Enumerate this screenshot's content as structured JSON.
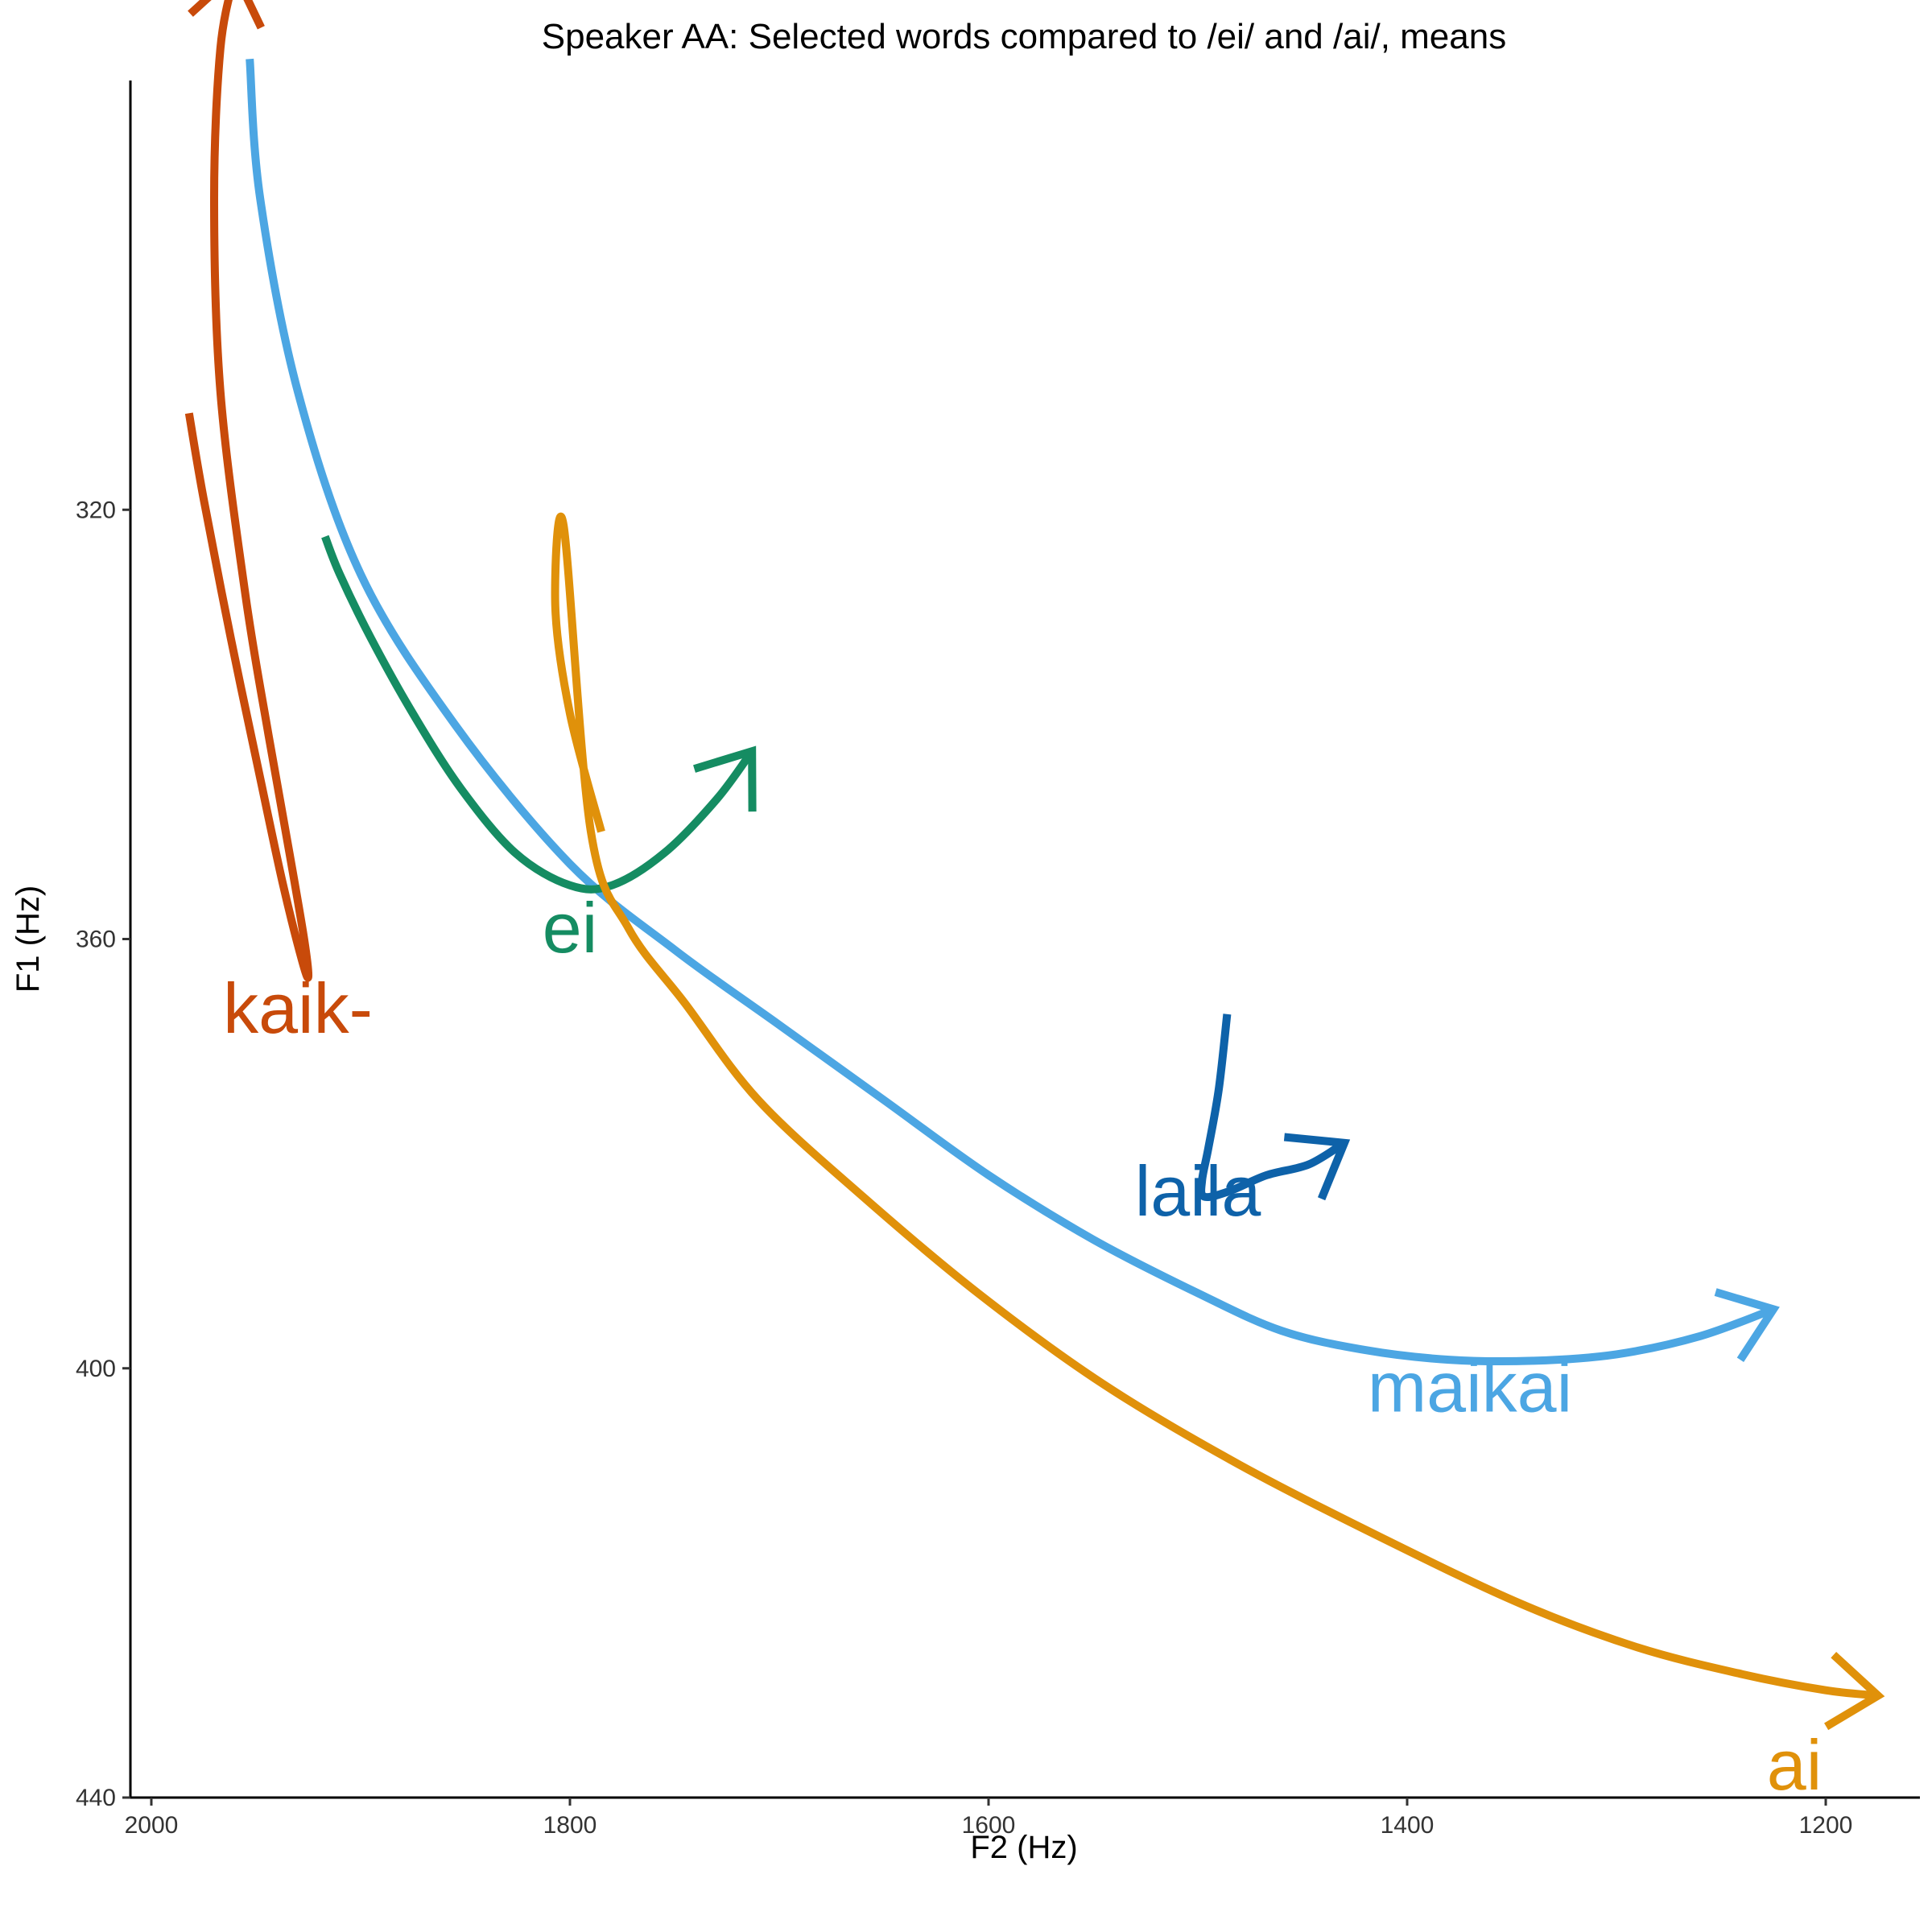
{
  "chart_data": {
    "type": "line",
    "title": "Speaker AA: Selected words compared to /ei/ and /ai/, means",
    "xlabel": "F2 (Hz)",
    "ylabel": "F1 (Hz)",
    "x_reversed": true,
    "y_reversed": true,
    "xlim": [
      2010,
      1155
    ],
    "ylim": [
      280,
      440
    ],
    "x_ticks": [
      2000,
      1800,
      1600,
      1400,
      1200
    ],
    "x_tick_labels": [
      "2000",
      "1800",
      "1600",
      "1400",
      "1200"
    ],
    "y_ticks": [
      320,
      360,
      400,
      440
    ],
    "y_tick_labels": [
      "320",
      "360",
      "400",
      "440"
    ],
    "grid": false,
    "legend": "none (direct labels)",
    "series": [
      {
        "name": "kaik-",
        "color": "#C84A0A",
        "label_at": [
          1930,
          366.5
        ],
        "points": [
          [
            1982,
            311
          ],
          [
            1975,
            319
          ],
          [
            1962,
            332
          ],
          [
            1948,
            345
          ],
          [
            1937,
            355
          ],
          [
            1928,
            362
          ],
          [
            1925,
            363.5
          ],
          [
            1927,
            360
          ],
          [
            1934,
            352
          ],
          [
            1944,
            341
          ],
          [
            1955,
            328
          ],
          [
            1967,
            309
          ],
          [
            1970,
            291
          ],
          [
            1967,
            277
          ],
          [
            1960,
            270
          ]
        ]
      },
      {
        "name": "maikai",
        "color": "#4CA6E3",
        "label_at": [
          1370,
          401.8
        ],
        "points": [
          [
            1953,
            278
          ],
          [
            1948,
            291
          ],
          [
            1930,
            309
          ],
          [
            1900,
            326
          ],
          [
            1855,
            340
          ],
          [
            1800,
            353
          ],
          [
            1750,
            361
          ],
          [
            1700,
            368
          ],
          [
            1650,
            375
          ],
          [
            1600,
            382
          ],
          [
            1550,
            388
          ],
          [
            1500,
            393
          ],
          [
            1460,
            396.5
          ],
          [
            1420,
            398.3
          ],
          [
            1380,
            399.2
          ],
          [
            1340,
            399.3
          ],
          [
            1300,
            398.7
          ],
          [
            1260,
            397
          ],
          [
            1225,
            394.5
          ]
        ]
      },
      {
        "name": "ei",
        "color": "#158C62",
        "label_at": [
          1800,
          359
        ],
        "points": [
          [
            1917,
            322.5
          ],
          [
            1910,
            326
          ],
          [
            1895,
            332
          ],
          [
            1875,
            339
          ],
          [
            1852,
            346
          ],
          [
            1826,
            352
          ],
          [
            1800,
            355
          ],
          [
            1780,
            355
          ],
          [
            1755,
            352
          ],
          [
            1730,
            347
          ],
          [
            1713,
            342.5
          ]
        ]
      },
      {
        "name": "ai",
        "color": "#E0910A",
        "label_at": [
          1215,
          437
        ],
        "points": [
          [
            1785,
            350
          ],
          [
            1800,
            339
          ],
          [
            1807,
            329
          ],
          [
            1803,
            321.5
          ],
          [
            1790,
            350
          ],
          [
            1772,
            359
          ],
          [
            1745,
            366
          ],
          [
            1710,
            375
          ],
          [
            1660,
            384
          ],
          [
            1605,
            393
          ],
          [
            1545,
            401.5
          ],
          [
            1480,
            409
          ],
          [
            1410,
            416
          ],
          [
            1345,
            422
          ],
          [
            1290,
            426
          ],
          [
            1240,
            428.5
          ],
          [
            1200,
            430
          ],
          [
            1175,
            430.5
          ]
        ]
      },
      {
        "name": "laila",
        "color": "#0E62A9",
        "label_at": [
          1500,
          383.5
        ],
        "points": [
          [
            1486,
            367
          ],
          [
            1490,
            374
          ],
          [
            1495,
            379.5
          ],
          [
            1498,
            382.5
          ],
          [
            1497,
            384
          ],
          [
            1485,
            383.5
          ],
          [
            1467,
            382
          ],
          [
            1447,
            381
          ],
          [
            1430,
            379
          ]
        ]
      }
    ]
  }
}
